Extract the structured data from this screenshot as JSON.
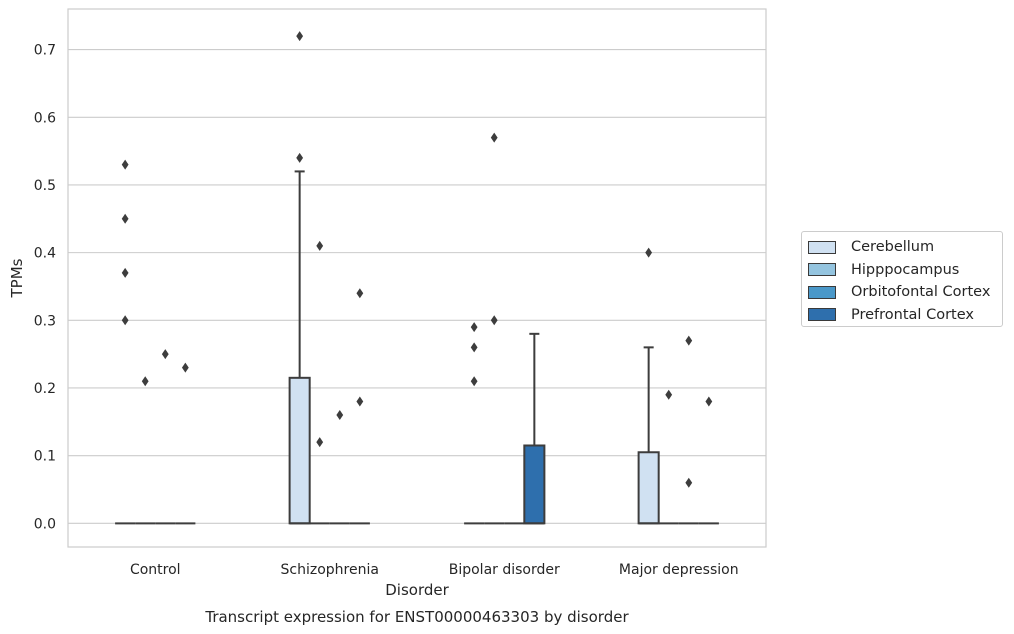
{
  "chart_data": {
    "type": "box",
    "title": "Transcript expression for ENST00000463303 by disorder",
    "xlabel": "Disorder",
    "ylabel": "TPMs",
    "ylim": [
      -0.035,
      0.76
    ],
    "yticks": [
      "0.0",
      "0.1",
      "0.2",
      "0.3",
      "0.4",
      "0.5",
      "0.6",
      "0.7"
    ],
    "ytick_values": [
      0,
      0.1,
      0.2,
      0.3,
      0.4,
      0.5,
      0.6,
      0.7
    ],
    "categories": [
      "Control",
      "Schizophrenia",
      "Bipolar disorder",
      "Major depression"
    ],
    "grid": "horizontal",
    "legend_position": "outside-right",
    "series": [
      {
        "name": "Cerebellum",
        "color": "#d0e1f2",
        "boxes": [
          {
            "q1": 0,
            "median": 0,
            "q3": 0,
            "whisker_low": 0,
            "whisker_high": 0,
            "outliers": [
              0.53,
              0.45,
              0.37,
              0.3
            ]
          },
          {
            "q1": 0,
            "median": 0,
            "q3": 0.215,
            "whisker_low": 0,
            "whisker_high": 0.52,
            "outliers": [
              0.72,
              0.54
            ]
          },
          {
            "q1": 0,
            "median": 0,
            "q3": 0,
            "whisker_low": 0,
            "whisker_high": 0,
            "outliers": [
              0.29,
              0.26,
              0.21
            ]
          },
          {
            "q1": 0,
            "median": 0,
            "q3": 0.105,
            "whisker_low": 0,
            "whisker_high": 0.26,
            "outliers": [
              0.4
            ]
          }
        ]
      },
      {
        "name": "Hipppocampus",
        "color": "#94c4df",
        "boxes": [
          {
            "q1": 0,
            "median": 0,
            "q3": 0,
            "whisker_low": 0,
            "whisker_high": 0,
            "outliers": [
              0.21
            ]
          },
          {
            "q1": 0,
            "median": 0,
            "q3": 0,
            "whisker_low": 0,
            "whisker_high": 0,
            "outliers": [
              0.41,
              0.12
            ]
          },
          {
            "q1": 0,
            "median": 0,
            "q3": 0,
            "whisker_low": 0,
            "whisker_high": 0,
            "outliers": [
              0.57,
              0.3
            ]
          },
          {
            "q1": 0,
            "median": 0,
            "q3": 0,
            "whisker_low": 0,
            "whisker_high": 0,
            "outliers": [
              0.19
            ]
          }
        ]
      },
      {
        "name": "Orbitofontal Cortex",
        "color": "#4a98c9",
        "boxes": [
          {
            "q1": 0,
            "median": 0,
            "q3": 0,
            "whisker_low": 0,
            "whisker_high": 0,
            "outliers": [
              0.25
            ]
          },
          {
            "q1": 0,
            "median": 0,
            "q3": 0,
            "whisker_low": 0,
            "whisker_high": 0,
            "outliers": [
              0.16
            ]
          },
          {
            "q1": 0,
            "median": 0,
            "q3": 0,
            "whisker_low": 0,
            "whisker_high": 0,
            "outliers": []
          },
          {
            "q1": 0,
            "median": 0,
            "q3": 0,
            "whisker_low": 0,
            "whisker_high": 0,
            "outliers": [
              0.27,
              0.06
            ]
          }
        ]
      },
      {
        "name": "Prefrontal Cortex",
        "color": "#2e6fad",
        "boxes": [
          {
            "q1": 0,
            "median": 0,
            "q3": 0,
            "whisker_low": 0,
            "whisker_high": 0,
            "outliers": [
              0.23
            ]
          },
          {
            "q1": 0,
            "median": 0,
            "q3": 0,
            "whisker_low": 0,
            "whisker_high": 0,
            "outliers": [
              0.34,
              0.18
            ]
          },
          {
            "q1": 0,
            "median": 0,
            "q3": 0.115,
            "whisker_low": 0,
            "whisker_high": 0.28,
            "outliers": []
          },
          {
            "q1": 0,
            "median": 0,
            "q3": 0,
            "whisker_low": 0,
            "whisker_high": 0,
            "outliers": [
              0.18
            ]
          }
        ]
      }
    ]
  }
}
